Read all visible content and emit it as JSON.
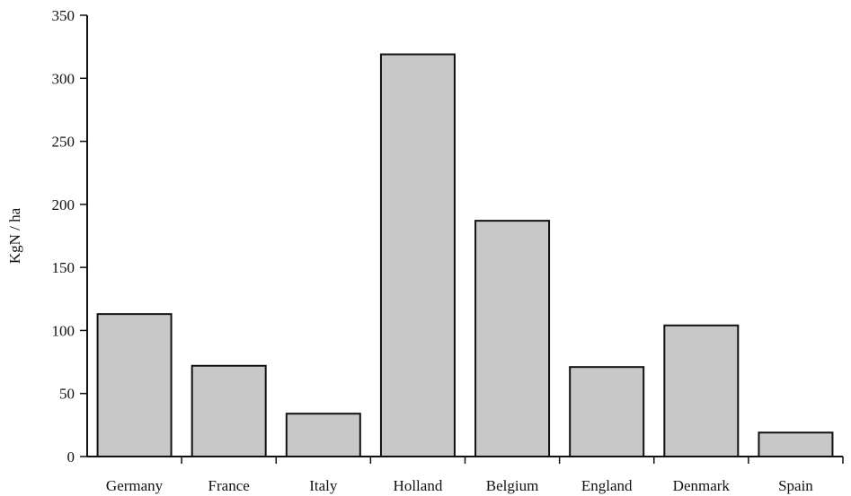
{
  "chart_data": {
    "type": "bar",
    "title": "",
    "xlabel": "",
    "ylabel": "KgN / ha",
    "ylim": [
      0,
      350
    ],
    "yticks": [
      0,
      50,
      100,
      150,
      200,
      250,
      300,
      350
    ],
    "categories": [
      "Germany",
      "France",
      "Italy",
      "Holland",
      "Belgium",
      "England",
      "Denmark",
      "Spain"
    ],
    "values": [
      113,
      72,
      34,
      319,
      187,
      71,
      104,
      19
    ],
    "grid": false,
    "legend": "none",
    "bar_color": "#c8c8c8",
    "edge_color": "#111111"
  }
}
